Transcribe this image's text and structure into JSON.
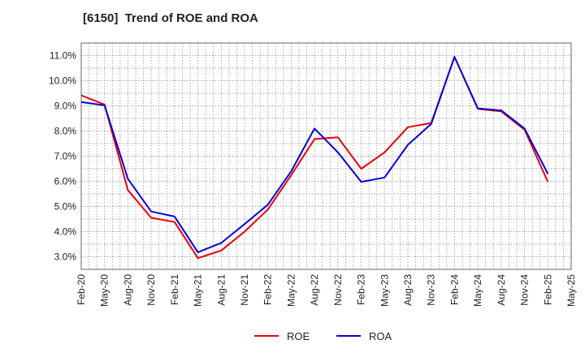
{
  "chart_data": {
    "type": "line",
    "title": "[6150]  Trend of ROE and ROA",
    "x": [
      "Feb-20",
      "May-20",
      "Aug-20",
      "Nov-20",
      "Feb-21",
      "May-21",
      "Aug-21",
      "Nov-21",
      "Feb-22",
      "May-22",
      "Aug-22",
      "Nov-22",
      "Feb-23",
      "May-23",
      "Aug-23",
      "Nov-23",
      "Feb-24",
      "May-24",
      "Aug-24",
      "Nov-24",
      "Feb-25",
      "May-25"
    ],
    "ylim": [
      2.5,
      11.5
    ],
    "yticks": [
      3.0,
      4.0,
      5.0,
      6.0,
      7.0,
      8.0,
      9.0,
      10.0,
      11.0
    ],
    "ytick_labels": [
      "3.0%",
      "4.0%",
      "5.0%",
      "6.0%",
      "7.0%",
      "8.0%",
      "9.0%",
      "10.0%",
      "11.0%"
    ],
    "grid": true,
    "legend_position": "bottom-center",
    "series": [
      {
        "name": "ROE",
        "color": "#e8000b",
        "values": [
          9.42,
          9.05,
          5.65,
          4.55,
          4.38,
          2.95,
          3.25,
          4.0,
          4.88,
          6.25,
          7.68,
          7.75,
          6.5,
          7.15,
          8.15,
          8.32,
          10.95,
          8.88,
          8.78,
          8.05,
          5.98,
          null
        ]
      },
      {
        "name": "ROA",
        "color": "#0a00d6",
        "values": [
          9.15,
          9.02,
          6.1,
          4.8,
          4.6,
          3.18,
          3.55,
          4.3,
          5.07,
          6.4,
          8.1,
          7.15,
          5.98,
          6.15,
          7.45,
          8.28,
          10.95,
          8.9,
          8.82,
          8.1,
          6.3,
          null
        ]
      }
    ]
  }
}
